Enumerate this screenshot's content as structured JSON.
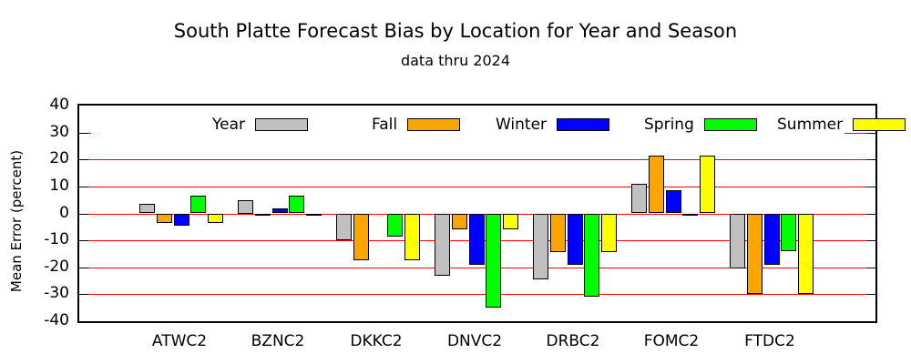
{
  "chart_data": {
    "type": "bar",
    "title": "South Platte Forecast Bias by Location for Year and Season",
    "subtitle": "data thru 2024",
    "ylabel": "Mean Error (percent)",
    "xlabel": "",
    "ylim": [
      -40,
      40
    ],
    "yticks": [
      40,
      30,
      20,
      10,
      0,
      -10,
      -20,
      -30,
      -40
    ],
    "grid": true,
    "grid_color": "#ff0000",
    "legend_position": "top-inside",
    "categories": [
      "ATWC2",
      "BZNC2",
      "DKKC2",
      "DNVC2",
      "DRBC2",
      "FOMC2",
      "FTDC2"
    ],
    "series": [
      {
        "name": "Year",
        "color": "#c0c0c0",
        "values": [
          3.5,
          5,
          -10,
          -23,
          -24.5,
          11,
          -20.5
        ]
      },
      {
        "name": "Fall",
        "color": "#ffa500",
        "values": [
          -3.5,
          -1,
          -17.5,
          -6,
          -14.5,
          21.5,
          -30
        ]
      },
      {
        "name": "Winter",
        "color": "#0000ff",
        "values": [
          -4.5,
          2,
          0,
          -19,
          -19,
          8.5,
          -19
        ]
      },
      {
        "name": "Spring",
        "color": "#00ff00",
        "values": [
          6.5,
          6.5,
          -8.5,
          -35,
          -31,
          -1,
          -14
        ]
      },
      {
        "name": "Summer",
        "color": "#ffff00",
        "values": [
          -3.5,
          -1,
          -17.5,
          -6,
          -14.5,
          21.5,
          -30
        ]
      }
    ]
  }
}
